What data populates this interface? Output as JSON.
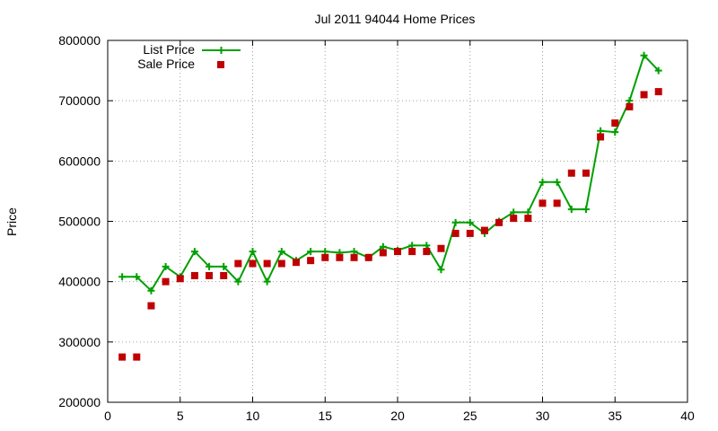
{
  "chart_data": {
    "type": "line",
    "title": "Jul 2011 94044 Home Prices",
    "xlabel": "",
    "ylabel": "Price",
    "xlim": [
      0,
      40
    ],
    "ylim": [
      200000,
      800000
    ],
    "xticks": [
      0,
      5,
      10,
      15,
      20,
      25,
      30,
      35,
      40
    ],
    "yticks": [
      200000,
      300000,
      400000,
      500000,
      600000,
      700000,
      800000
    ],
    "xtick_labels": [
      "0",
      "5",
      "10",
      "15",
      "20",
      "25",
      "30",
      "35",
      "40"
    ],
    "ytick_labels": [
      "200000",
      "300000",
      "400000",
      "500000",
      "600000",
      "700000",
      "800000"
    ],
    "grid": true,
    "legend_position": "top-left",
    "series": [
      {
        "name": "List Price",
        "style": "line+plus-marker",
        "color": "#00a000",
        "x": [
          1,
          2,
          3,
          4,
          5,
          6,
          7,
          8,
          9,
          10,
          11,
          12,
          13,
          14,
          15,
          16,
          17,
          18,
          19,
          20,
          21,
          22,
          23,
          24,
          25,
          26,
          27,
          28,
          29,
          30,
          31,
          32,
          33,
          34,
          35,
          36,
          37,
          38
        ],
        "y": [
          408000,
          408000,
          385000,
          425000,
          408000,
          450000,
          425000,
          425000,
          400000,
          450000,
          400000,
          450000,
          435000,
          450000,
          450000,
          448000,
          450000,
          440000,
          458000,
          452000,
          460000,
          460000,
          420000,
          498000,
          498000,
          480000,
          500000,
          515000,
          515000,
          565000,
          565000,
          520000,
          520000,
          650000,
          648000,
          700000,
          775000,
          750000
        ]
      },
      {
        "name": "Sale Price",
        "style": "square-marker",
        "color": "#c00000",
        "x": [
          1,
          2,
          3,
          4,
          5,
          6,
          7,
          8,
          9,
          10,
          11,
          12,
          13,
          14,
          15,
          16,
          17,
          18,
          19,
          20,
          21,
          22,
          23,
          24,
          25,
          26,
          27,
          28,
          29,
          30,
          31,
          32,
          33,
          34,
          35,
          36,
          37,
          38
        ],
        "y": [
          275000,
          275000,
          360000,
          400000,
          405000,
          410000,
          410000,
          410000,
          430000,
          430000,
          430000,
          430000,
          432000,
          435000,
          440000,
          440000,
          440000,
          440000,
          448000,
          450000,
          450000,
          450000,
          455000,
          480000,
          480000,
          485000,
          498000,
          505000,
          505000,
          530000,
          530000,
          580000,
          580000,
          640000,
          663000,
          690000,
          710000,
          715000
        ]
      }
    ]
  }
}
